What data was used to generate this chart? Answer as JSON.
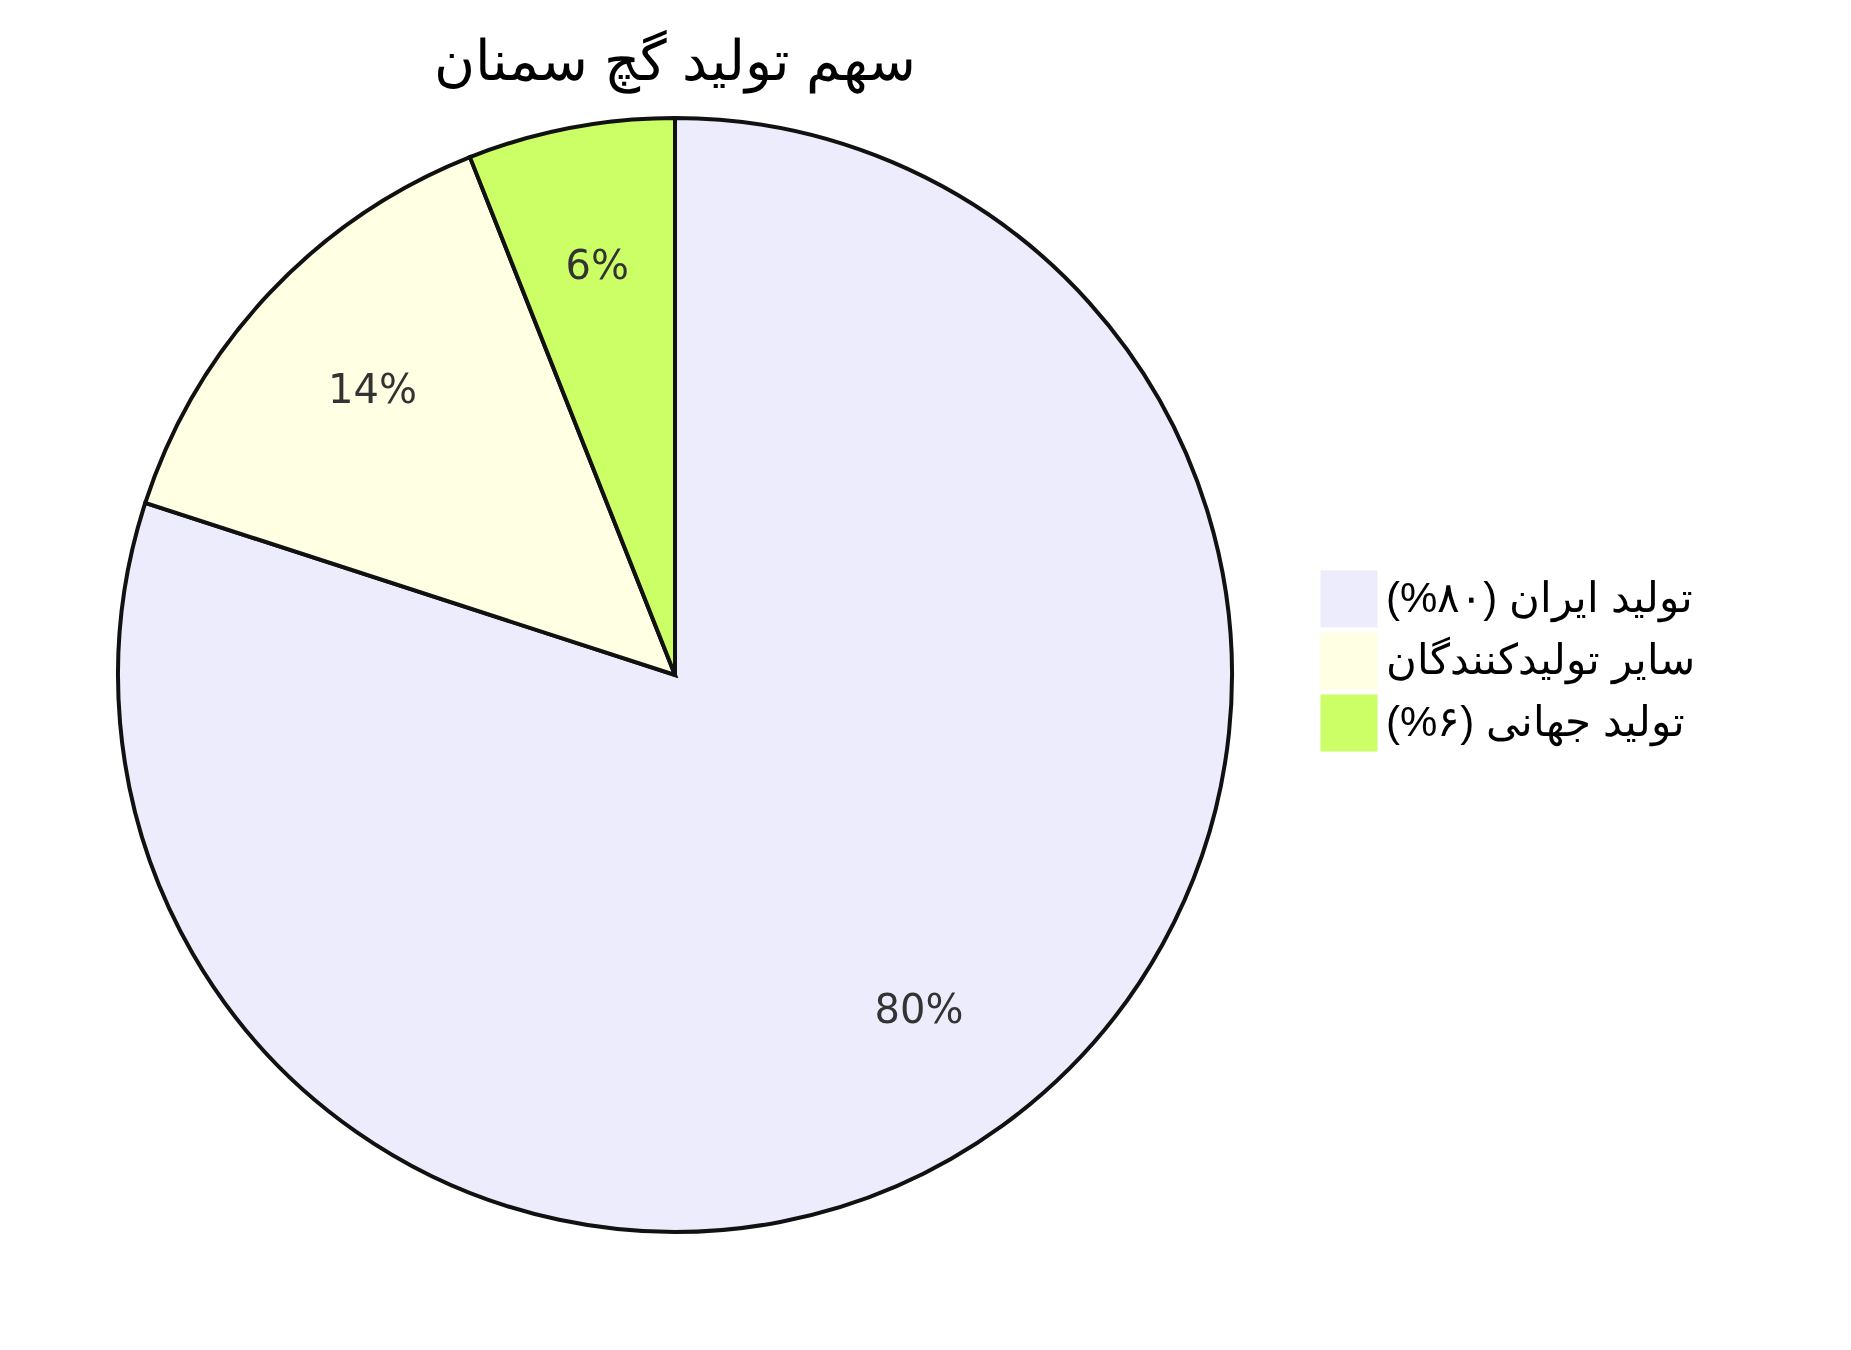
{
  "chart_data": {
    "type": "pie",
    "title": "سهم تولید گچ سمنان",
    "categories": [
      "تولید ایران (۸۰%)",
      "سایر تولیدکنندگان",
      "تولید جهانی (۶%)"
    ],
    "values": [
      80,
      14,
      6
    ],
    "colors": [
      "#ececfc",
      "#ffffe4",
      "#ccff66"
    ],
    "value_labels": [
      "80%",
      "14%",
      "6%"
    ],
    "legend": "right"
  }
}
